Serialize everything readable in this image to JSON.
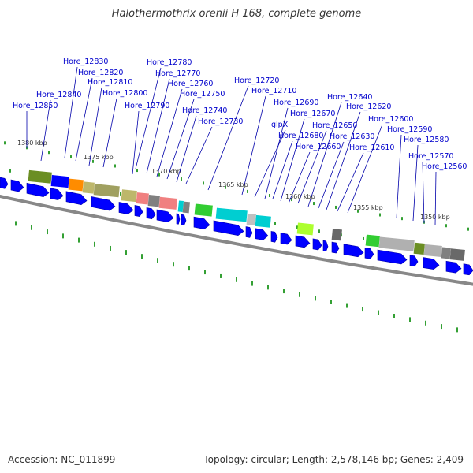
{
  "title": "Halothermothrix orenii H 168, complete genome",
  "footer": {
    "accession": "Accession: NC_011899",
    "genome_info": "Topology: circular; Length: 2,578,146 bp; Genes: 2,409"
  },
  "colors": {
    "label_text": "#0000cc",
    "leader_line": "#0000aa",
    "gene_arrow": "#0000ff",
    "backbone": "#888888",
    "tick": "#008800"
  },
  "scale_labels": [
    "1380 kbp",
    "1375 kbp",
    "1370 kbp",
    "1365 kbp",
    "1360 kbp",
    "1355 kbp",
    "1350 kbp"
  ],
  "gene_labels": [
    "Hore_12850",
    "Hore_12840",
    "Hore_12830",
    "Hore_12820",
    "Hore_12810",
    "Hore_12800",
    "Hore_12790",
    "Hore_12780",
    "Hore_12770",
    "Hore_12760",
    "Hore_12750",
    "Hore_12740",
    "Hore_12730",
    "Hore_12720",
    "Hore_12710",
    "glpX",
    "Hore_12690",
    "Hore_12680",
    "Hore_12670",
    "Hore_12660",
    "Hore_12650",
    "Hore_12640",
    "Hore_12630",
    "Hore_12620",
    "Hore_12610",
    "Hore_12600",
    "Hore_12590",
    "Hore_12580",
    "Hore_12570",
    "Hore_12560"
  ]
}
